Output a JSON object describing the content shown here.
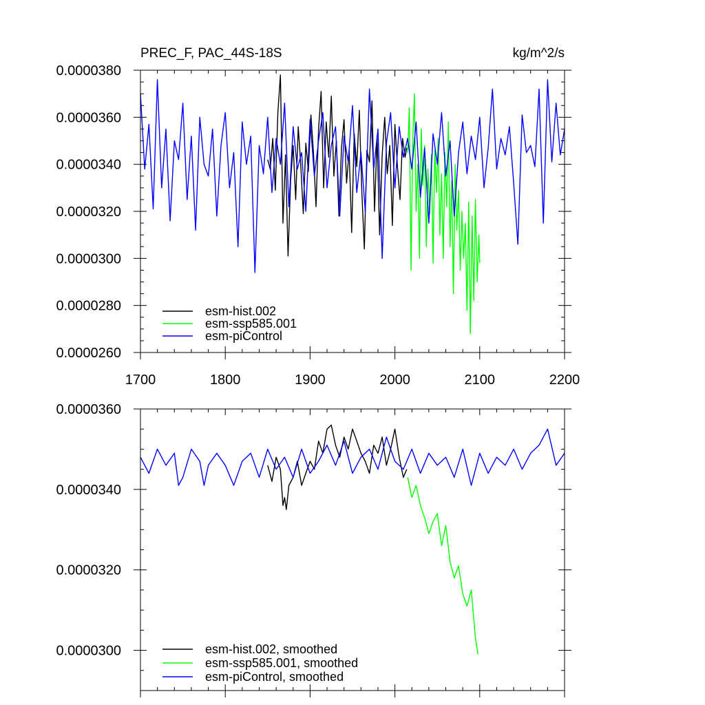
{
  "chart_data": [
    {
      "type": "line",
      "title_left": "PREC_F, PAC_44S-18S",
      "title_right": "kg/m^2/s",
      "xlim": [
        1700,
        2200
      ],
      "ylim": [
        2.6e-05,
        3.8e-05
      ],
      "x_ticks": [
        1700,
        1800,
        1900,
        2000,
        2100,
        2200
      ],
      "x_tick_labels": [
        "1700",
        "1800",
        "1900",
        "2000",
        "2100",
        "2200"
      ],
      "y_ticks": [
        2.6e-05,
        2.8e-05,
        3e-05,
        3.2e-05,
        3.4e-05,
        3.6e-05,
        3.8e-05
      ],
      "y_tick_labels": [
        "0.0000260",
        "0.0000280",
        "0.0000300",
        "0.0000320",
        "0.0000340",
        "0.0000360",
        "0.0000380"
      ],
      "legend": [
        "esm-hist.002",
        "esm-ssp585.001",
        "esm-piControl"
      ],
      "series": [
        {
          "name": "esm-hist.002",
          "color": "#000000",
          "x": [
            1850,
            1853,
            1856,
            1859,
            1862,
            1865,
            1868,
            1871,
            1874,
            1877,
            1880,
            1883,
            1886,
            1889,
            1892,
            1895,
            1898,
            1901,
            1904,
            1907,
            1910,
            1913,
            1916,
            1919,
            1922,
            1925,
            1928,
            1931,
            1934,
            1937,
            1940,
            1943,
            1946,
            1949,
            1952,
            1955,
            1958,
            1961,
            1964,
            1967,
            1970,
            1973,
            1976,
            1979,
            1982,
            1985,
            1988,
            1991,
            1994,
            1997,
            2000,
            2003,
            2006,
            2009,
            2012,
            2014
          ],
          "values": [
            3.42e-05,
            3.38e-05,
            3.51e-05,
            3.29e-05,
            3.62e-05,
            3.78e-05,
            3.15e-05,
            3.44e-05,
            3.01e-05,
            3.33e-05,
            3.48e-05,
            3.25e-05,
            3.56e-05,
            3.4e-05,
            3.19e-05,
            3.49e-05,
            3.37e-05,
            3.61e-05,
            3.45e-05,
            3.22e-05,
            3.55e-05,
            3.71e-05,
            3.3e-05,
            3.58e-05,
            3.43e-05,
            3.69e-05,
            3.35e-05,
            3.5e-05,
            3.18e-05,
            3.47e-05,
            3.59e-05,
            3.32e-05,
            3.46e-05,
            3.11e-05,
            3.53e-05,
            3.39e-05,
            3.63e-05,
            3.28e-05,
            3.04e-05,
            3.46e-05,
            3.41e-05,
            3.67e-05,
            3.2e-05,
            3.52e-05,
            3.1e-05,
            3.44e-05,
            3.6e-05,
            3.36e-05,
            3.48e-05,
            3.14e-05,
            3.57e-05,
            3.39e-05,
            3.25e-05,
            3.51e-05,
            3.43e-05,
            3.47e-05
          ]
        },
        {
          "name": "esm-ssp585.001",
          "color": "#00ff00",
          "x": [
            2015,
            2017,
            2019,
            2021,
            2023,
            2025,
            2027,
            2029,
            2031,
            2033,
            2035,
            2037,
            2039,
            2041,
            2043,
            2045,
            2047,
            2049,
            2051,
            2053,
            2055,
            2057,
            2059,
            2061,
            2063,
            2065,
            2067,
            2069,
            2071,
            2073,
            2075,
            2077,
            2079,
            2081,
            2083,
            2085,
            2087,
            2089,
            2091,
            2093,
            2095,
            2097,
            2099,
            2100
          ],
          "values": [
            3.45e-05,
            3.64e-05,
            2.95e-05,
            3.5e-05,
            3.7e-05,
            3.2e-05,
            3.4e-05,
            3e-05,
            3.55e-05,
            3.31e-05,
            3.48e-05,
            3.05e-05,
            3.38e-05,
            3.19e-05,
            3.44e-05,
            2.98e-05,
            3.46e-05,
            3.28e-05,
            3.51e-05,
            3.1e-05,
            3.36e-05,
            3e-05,
            3.45e-05,
            3.22e-05,
            3.58e-05,
            3.05e-05,
            3.33e-05,
            2.85e-05,
            3.4e-05,
            3.12e-05,
            3.29e-05,
            2.95e-05,
            3.2e-05,
            3e-05,
            3.15e-05,
            2.78e-05,
            3.24e-05,
            2.68e-05,
            3.18e-05,
            2.82e-05,
            3.25e-05,
            2.9e-05,
            3.1e-05,
            2.98e-05
          ]
        },
        {
          "name": "esm-piControl",
          "color": "#0000ff",
          "x": [
            1700,
            1705,
            1710,
            1715,
            1720,
            1725,
            1730,
            1735,
            1740,
            1745,
            1750,
            1755,
            1760,
            1765,
            1770,
            1775,
            1780,
            1785,
            1790,
            1795,
            1800,
            1805,
            1810,
            1815,
            1820,
            1825,
            1830,
            1835,
            1840,
            1845,
            1850,
            1855,
            1860,
            1865,
            1870,
            1875,
            1880,
            1885,
            1890,
            1895,
            1900,
            1905,
            1910,
            1915,
            1920,
            1925,
            1930,
            1935,
            1940,
            1945,
            1950,
            1955,
            1960,
            1965,
            1970,
            1975,
            1980,
            1985,
            1990,
            1995,
            2000,
            2005,
            2010,
            2015,
            2020,
            2025,
            2030,
            2035,
            2040,
            2045,
            2050,
            2055,
            2060,
            2065,
            2070,
            2075,
            2080,
            2085,
            2090,
            2095,
            2100,
            2105,
            2110,
            2115,
            2120,
            2125,
            2130,
            2135,
            2140,
            2145,
            2150,
            2155,
            2160,
            2165,
            2170,
            2175,
            2180,
            2185,
            2190,
            2195,
            2200
          ],
          "values": [
            3.7e-05,
            3.38e-05,
            3.57e-05,
            3.21e-05,
            3.76e-05,
            3.3e-05,
            3.55e-05,
            3.16e-05,
            3.5e-05,
            3.42e-05,
            3.66e-05,
            3.25e-05,
            3.52e-05,
            3.12e-05,
            3.6e-05,
            3.4e-05,
            3.35e-05,
            3.55e-05,
            3.18e-05,
            3.48e-05,
            3.62e-05,
            3.3e-05,
            3.45e-05,
            3.05e-05,
            3.58e-05,
            3.4e-05,
            3.52e-05,
            2.94e-05,
            3.48e-05,
            3.36e-05,
            3.6e-05,
            3.28e-05,
            3.51e-05,
            3.4e-05,
            3.66e-05,
            3.22e-05,
            3.56e-05,
            3.38e-05,
            3.45e-05,
            3.2e-05,
            3.59e-05,
            3.35e-05,
            3.5e-05,
            3.62e-05,
            3.3e-05,
            3.48e-05,
            3.56e-05,
            3.18e-05,
            3.52e-05,
            3.41e-05,
            3.65e-05,
            3.28e-05,
            3.45e-05,
            3.2e-05,
            3.72e-05,
            3.38e-05,
            3.55e-05,
            3e-05,
            3.49e-05,
            3.62e-05,
            3.3e-05,
            3.56e-05,
            3.43e-05,
            3.51e-05,
            3.38e-05,
            3.58e-05,
            3.26e-05,
            3.47e-05,
            3.15e-05,
            3.53e-05,
            3.4e-05,
            3.62e-05,
            3.35e-05,
            3.5e-05,
            3.18e-05,
            3.45e-05,
            3.58e-05,
            3.36e-05,
            3.52e-05,
            3.42e-05,
            3.6e-05,
            3.3e-05,
            3.47e-05,
            3.72e-05,
            3.38e-05,
            3.51e-05,
            3.44e-05,
            3.56e-05,
            3.32e-05,
            3.06e-05,
            3.61e-05,
            3.45e-05,
            3.48e-05,
            3.39e-05,
            3.72e-05,
            3.15e-05,
            3.76e-05,
            3.41e-05,
            3.66e-05,
            3.44e-05,
            3.55e-05
          ]
        }
      ]
    },
    {
      "type": "line",
      "xlim": [
        1700,
        2200
      ],
      "ylim": [
        2.9e-05,
        3.6e-05
      ],
      "x_ticks": [
        1700,
        1800,
        1900,
        2000,
        2100,
        2200
      ],
      "y_ticks": [
        3e-05,
        3.2e-05,
        3.4e-05,
        3.6e-05
      ],
      "y_tick_labels": [
        "0.0000300",
        "0.0000320",
        "0.0000340",
        "0.0000360"
      ],
      "legend": [
        "esm-hist.002, smoothed",
        "esm-ssp585.001, smoothed",
        "esm-piControl, smoothed"
      ],
      "series": [
        {
          "name": "esm-hist.002, smoothed",
          "color": "#000000",
          "x": [
            1850,
            1855,
            1860,
            1865,
            1868,
            1870,
            1872,
            1875,
            1880,
            1885,
            1890,
            1895,
            1900,
            1905,
            1910,
            1915,
            1920,
            1925,
            1930,
            1935,
            1940,
            1945,
            1950,
            1955,
            1960,
            1965,
            1970,
            1975,
            1980,
            1985,
            1990,
            1995,
            2000,
            2005,
            2010,
            2014
          ],
          "values": [
            3.46e-05,
            3.42e-05,
            3.48e-05,
            3.45e-05,
            3.36e-05,
            3.38e-05,
            3.35e-05,
            3.41e-05,
            3.43e-05,
            3.47e-05,
            3.41e-05,
            3.44e-05,
            3.47e-05,
            3.45e-05,
            3.52e-05,
            3.49e-05,
            3.55e-05,
            3.56e-05,
            3.51e-05,
            3.48e-05,
            3.53e-05,
            3.5e-05,
            3.55e-05,
            3.52e-05,
            3.49e-05,
            3.47e-05,
            3.44e-05,
            3.51e-05,
            3.49e-05,
            3.53e-05,
            3.46e-05,
            3.5e-05,
            3.55e-05,
            3.48e-05,
            3.43e-05,
            3.45e-05
          ]
        },
        {
          "name": "esm-ssp585.001, smoothed",
          "color": "#00ff00",
          "x": [
            2015,
            2020,
            2025,
            2030,
            2035,
            2040,
            2045,
            2050,
            2055,
            2060,
            2065,
            2070,
            2075,
            2080,
            2085,
            2090,
            2095,
            2098
          ],
          "values": [
            3.43e-05,
            3.38e-05,
            3.41e-05,
            3.36e-05,
            3.33e-05,
            3.29e-05,
            3.32e-05,
            3.34e-05,
            3.26e-05,
            3.31e-05,
            3.22e-05,
            3.18e-05,
            3.21e-05,
            3.14e-05,
            3.11e-05,
            3.15e-05,
            3.03e-05,
            2.99e-05
          ]
        },
        {
          "name": "esm-piControl, smoothed",
          "color": "#0000ff",
          "x": [
            1700,
            1710,
            1720,
            1730,
            1740,
            1745,
            1750,
            1760,
            1770,
            1775,
            1780,
            1790,
            1800,
            1810,
            1820,
            1830,
            1840,
            1850,
            1860,
            1870,
            1880,
            1890,
            1900,
            1910,
            1920,
            1930,
            1940,
            1950,
            1960,
            1970,
            1980,
            1990,
            2000,
            2010,
            2020,
            2030,
            2040,
            2050,
            2060,
            2070,
            2080,
            2090,
            2100,
            2110,
            2120,
            2130,
            2140,
            2150,
            2160,
            2170,
            2180,
            2190,
            2200
          ],
          "values": [
            3.48e-05,
            3.44e-05,
            3.5e-05,
            3.46e-05,
            3.49e-05,
            3.41e-05,
            3.43e-05,
            3.5e-05,
            3.47e-05,
            3.41e-05,
            3.46e-05,
            3.49e-05,
            3.46e-05,
            3.41e-05,
            3.47e-05,
            3.49e-05,
            3.43e-05,
            3.5e-05,
            3.45e-05,
            3.48e-05,
            3.43e-05,
            3.5e-05,
            3.44e-05,
            3.47e-05,
            3.51e-05,
            3.46e-05,
            3.52e-05,
            3.44e-05,
            3.48e-05,
            3.5e-05,
            3.45e-05,
            3.53e-05,
            3.47e-05,
            3.45e-05,
            3.5e-05,
            3.44e-05,
            3.49e-05,
            3.46e-05,
            3.48e-05,
            3.43e-05,
            3.5e-05,
            3.41e-05,
            3.49e-05,
            3.44e-05,
            3.48e-05,
            3.46e-05,
            3.5e-05,
            3.45e-05,
            3.49e-05,
            3.51e-05,
            3.55e-05,
            3.46e-05,
            3.49e-05
          ]
        }
      ]
    }
  ]
}
